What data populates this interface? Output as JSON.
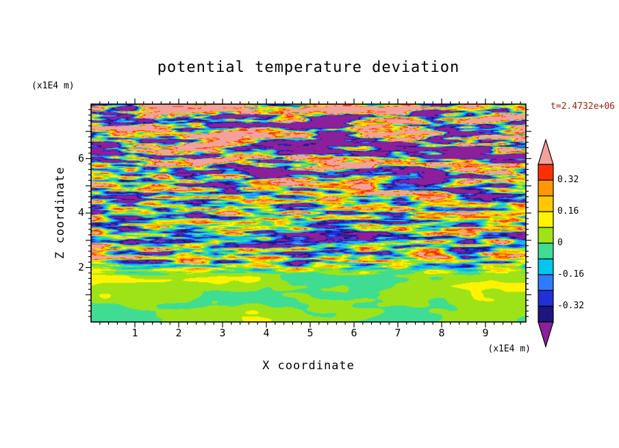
{
  "title": "potential temperature deviation",
  "annotations": {
    "time": "t=2.4732e+06"
  },
  "colors": {
    "time_label": "#a02010",
    "frame": "#000000",
    "background": "#ffffff",
    "text": "#000000"
  },
  "axes": {
    "x": {
      "label": "X coordinate",
      "units": "(x1E4 m)",
      "min": 0,
      "max": 9.92,
      "major_tick_interval": 1,
      "minor_tick_interval": 0.2,
      "tick_values": [
        1,
        2,
        3,
        4,
        5,
        6,
        7,
        8,
        9
      ],
      "tick_labels": [
        "1",
        "2",
        "3",
        "4",
        "5",
        "6",
        "7",
        "8",
        "9"
      ]
    },
    "z": {
      "label": "Z coordinate",
      "units": "(x1E4 m)",
      "min": 0,
      "max": 8.0,
      "major_tick_interval": 1,
      "minor_tick_interval": 0.2,
      "tick_values": [
        2,
        4,
        6
      ],
      "tick_labels": [
        "2",
        "4",
        "6"
      ]
    }
  },
  "colorbar": {
    "labels": [
      "0.32",
      "0.16",
      "0",
      "-0.16",
      "-0.32"
    ],
    "label_boundary_indices": [
      1,
      3,
      5,
      7,
      9
    ]
  },
  "chart_data": {
    "type": "heatmap",
    "title": "potential temperature deviation",
    "xlabel": "X coordinate",
    "ylabel": "Z coordinate",
    "x_units": "(x1E4 m)",
    "z_units": "(x1E4 m)",
    "x_range": [
      0,
      9.92
    ],
    "z_range": [
      0,
      8.0
    ],
    "time_annotation": "t=2.4732e+06",
    "grid": false,
    "legend_position": "right-colorbar",
    "contour_levels": [
      -0.4,
      -0.32,
      -0.24,
      -0.16,
      -0.08,
      0,
      0.08,
      0.16,
      0.24,
      0.32,
      0.4
    ],
    "colorbar_tick_labels": [
      "0.32",
      "0.16",
      "0",
      "-0.16",
      "-0.32"
    ],
    "palette_low_to_high": [
      "#8C1F9C",
      "#1E1680",
      "#2230D8",
      "#2E7BFF",
      "#00C6F0",
      "#3EDD92",
      "#9EE318",
      "#FFF300",
      "#FFC800",
      "#FF9800",
      "#FB3000",
      "#F2A29B"
    ],
    "field_structure": {
      "description": "Filled-contour field of potential temperature deviation from a stratified turbulence simulation; horizontally elongated streaks of alternating positive (red/orange/yellow/salmon) and negative (cyan/blue/navy/purple) deviation above z = 2e4 m, with a nearly quiescent near-zero (chartreuse/spring-green) layer with smooth billows below z = 2e4 m.",
      "regions": [
        {
          "z_range": [
            0,
            2
          ],
          "character": "weak deviations near 0 (|dev| < 0.08); smooth green/chartreuse swirls"
        },
        {
          "z_range": [
            2,
            4.5
          ],
          "character": "thin intense horizontal streaks spanning roughly -0.4 to +0.4"
        },
        {
          "z_range": [
            4.5,
            8
          ],
          "character": "thicker saturated bands with many extremes beyond +0.4 (salmon) and -0.4 (purple)"
        }
      ]
    }
  }
}
